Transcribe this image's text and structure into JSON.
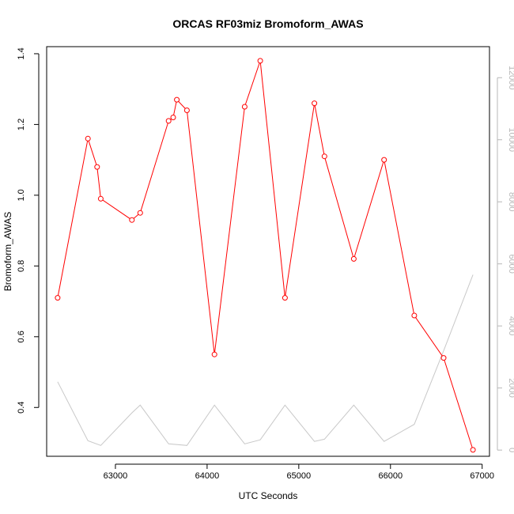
{
  "chart_data": {
    "type": "line",
    "title": "ORCAS RF03miz Bromoform_AWAS",
    "xlabel": "UTC Seconds",
    "ylabel": "Bromoform_AWAS",
    "xlim": [
      62250,
      67080
    ],
    "ylim": [
      0.262,
      1.42
    ],
    "y2lim": [
      -200,
      13000
    ],
    "x_ticks": [
      63000,
      64000,
      65000,
      66000,
      67000
    ],
    "x_tick_labels": [
      "63000",
      "64000",
      "65000",
      "66000",
      "67000"
    ],
    "y_ticks": [
      0.4,
      0.6,
      0.8,
      1.0,
      1.2,
      1.4
    ],
    "y_tick_labels": [
      "0.4",
      "0.6",
      "0.8",
      "1.0",
      "1.2",
      "1.4"
    ],
    "y2_ticks": [
      0,
      2000,
      4000,
      6000,
      8000,
      10000,
      12000
    ],
    "y2_tick_labels": [
      "0",
      "2000",
      "4000",
      "6000",
      "8000",
      "10000",
      "12000"
    ],
    "grid": false,
    "series": [
      {
        "axis": "left",
        "color": "#ff0000",
        "marker": "open-circle",
        "x": [
          62370,
          62700,
          62800,
          62840,
          63180,
          63270,
          63580,
          63630,
          63670,
          63780,
          64080,
          64410,
          64580,
          64850,
          65170,
          65280,
          65600,
          65930,
          66260,
          66580,
          66900
        ],
        "values": [
          0.71,
          1.16,
          1.08,
          0.99,
          0.93,
          0.95,
          1.21,
          1.22,
          1.27,
          1.24,
          0.55,
          1.25,
          1.38,
          0.71,
          1.26,
          1.11,
          0.82,
          1.1,
          0.66,
          0.54,
          0.28
        ]
      },
      {
        "axis": "right",
        "color": "#c8c8c8",
        "marker": "none",
        "x": [
          62370,
          62700,
          62840,
          63180,
          63270,
          63580,
          63780,
          64080,
          64410,
          64580,
          64850,
          65170,
          65280,
          65600,
          65930,
          66260,
          66580,
          66900
        ],
        "values": [
          2200,
          300,
          150,
          1200,
          1450,
          200,
          150,
          1450,
          200,
          330,
          1450,
          280,
          350,
          1450,
          280,
          830,
          3200,
          5650
        ]
      }
    ]
  }
}
